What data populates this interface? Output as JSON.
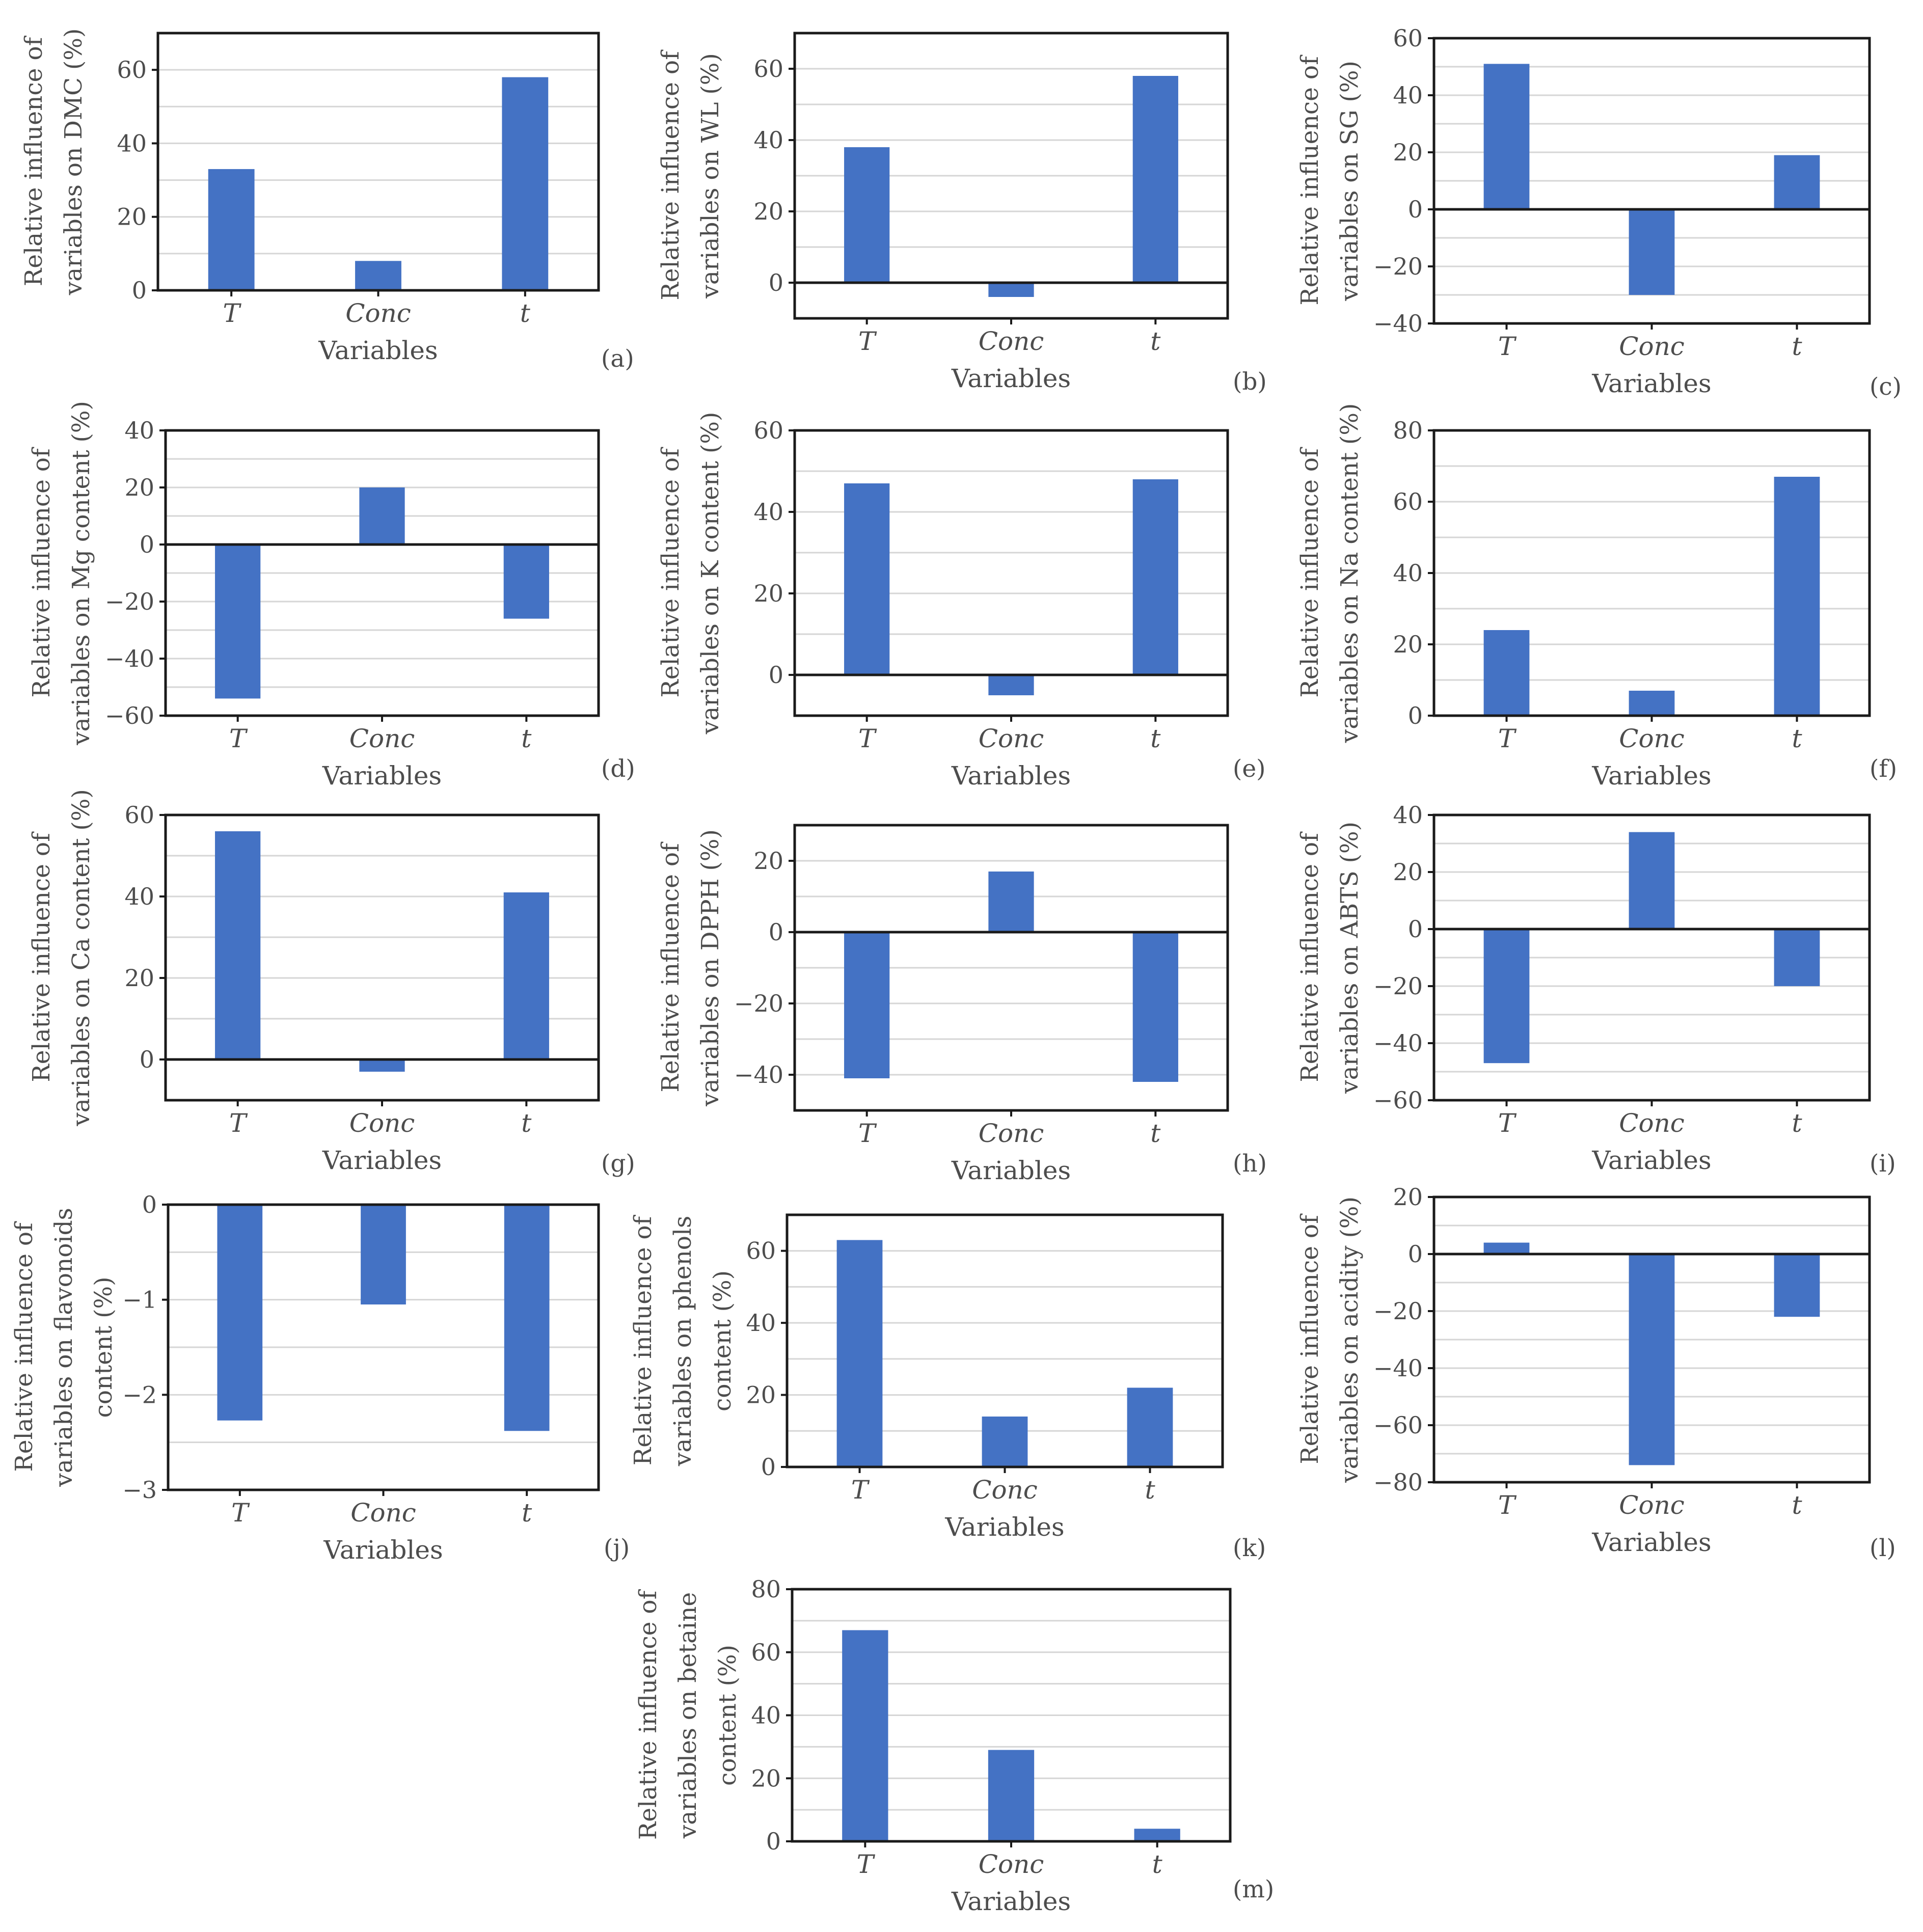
{
  "chart_data": [
    {
      "type": "bar",
      "panel": "(a)",
      "categories": [
        "T",
        "Conc",
        "t"
      ],
      "values": [
        33,
        8,
        58
      ],
      "ylabel": [
        "Relative influence of",
        "variables on DMC (%)"
      ],
      "xlabel": "Variables",
      "ylim": [
        0,
        70
      ],
      "yticks": [
        0,
        20,
        40,
        60
      ],
      "grid_step": 10,
      "bar_color": "#4472c4"
    },
    {
      "type": "bar",
      "panel": "(b)",
      "categories": [
        "T",
        "Conc",
        "t"
      ],
      "values": [
        38,
        -4,
        58
      ],
      "ylabel": [
        "Relative influence of",
        "variables on WL (%)"
      ],
      "xlabel": "Variables",
      "ylim": [
        -10,
        70
      ],
      "yticks": [
        0,
        20,
        40,
        60
      ],
      "grid_step": 10,
      "bar_color": "#4472c4"
    },
    {
      "type": "bar",
      "panel": "(c)",
      "categories": [
        "T",
        "Conc",
        "t"
      ],
      "values": [
        51,
        -30,
        19
      ],
      "ylabel": [
        "Relative influence of",
        "variables on SG (%)"
      ],
      "xlabel": "Variables",
      "ylim": [
        -40,
        60
      ],
      "yticks": [
        -40,
        -20,
        0,
        20,
        40,
        60
      ],
      "grid_step": 10,
      "bar_color": "#4472c4"
    },
    {
      "type": "bar",
      "panel": "(d)",
      "categories": [
        "T",
        "Conc",
        "t"
      ],
      "values": [
        -54,
        20,
        -26
      ],
      "ylabel": [
        "Relative influence of",
        "variables on Mg content (%)"
      ],
      "xlabel": "Variables",
      "ylim": [
        -60,
        40
      ],
      "yticks": [
        -60,
        -40,
        -20,
        0,
        20,
        40
      ],
      "grid_step": 10,
      "bar_color": "#4472c4"
    },
    {
      "type": "bar",
      "panel": "(e)",
      "categories": [
        "T",
        "Conc",
        "t"
      ],
      "values": [
        47,
        -5,
        48
      ],
      "ylabel": [
        "Relative influence of",
        "variables on K content (%)"
      ],
      "xlabel": "Variables",
      "ylim": [
        -10,
        60
      ],
      "yticks": [
        0,
        20,
        40,
        60
      ],
      "grid_step": 10,
      "bar_color": "#4472c4"
    },
    {
      "type": "bar",
      "panel": "(f)",
      "categories": [
        "T",
        "Conc",
        "t"
      ],
      "values": [
        24,
        7,
        67
      ],
      "ylabel": [
        "Relative influence of",
        "variables on Na content (%)"
      ],
      "xlabel": "Variables",
      "ylim": [
        0,
        80
      ],
      "yticks": [
        0,
        20,
        40,
        60,
        80
      ],
      "grid_step": 10,
      "bar_color": "#4472c4"
    },
    {
      "type": "bar",
      "panel": "(g)",
      "categories": [
        "T",
        "Conc",
        "t"
      ],
      "values": [
        56,
        -3,
        41
      ],
      "ylabel": [
        "Relative influence of",
        "variables on Ca content (%)"
      ],
      "xlabel": "Variables",
      "ylim": [
        -10,
        60
      ],
      "yticks": [
        0,
        20,
        40,
        60
      ],
      "grid_step": 10,
      "bar_color": "#4472c4"
    },
    {
      "type": "bar",
      "panel": "(h)",
      "categories": [
        "T",
        "Conc",
        "t"
      ],
      "values": [
        -41,
        17,
        -42
      ],
      "ylabel": [
        "Relative influence of",
        "variables on DPPH (%)"
      ],
      "xlabel": "Variables",
      "ylim": [
        -50,
        30
      ],
      "yticks": [
        -40,
        -20,
        0,
        20
      ],
      "grid_step": 10,
      "bar_color": "#4472c4"
    },
    {
      "type": "bar",
      "panel": "(i)",
      "categories": [
        "T",
        "Conc",
        "t"
      ],
      "values": [
        -47,
        34,
        -20
      ],
      "ylabel": [
        "Relative influence of",
        "variables on ABTS (%)"
      ],
      "xlabel": "Variables",
      "ylim": [
        -60,
        40
      ],
      "yticks": [
        -60,
        -40,
        -20,
        0,
        20,
        40
      ],
      "grid_step": 10,
      "bar_color": "#4472c4"
    },
    {
      "type": "bar",
      "panel": "(j)",
      "categories": [
        "T",
        "Conc",
        "t"
      ],
      "values": [
        -2.27,
        -1.05,
        -2.38
      ],
      "ylabel": [
        "Relative influence of",
        "variables on flavonoids",
        "content (%)"
      ],
      "xlabel": "Variables",
      "ylim": [
        -3,
        0
      ],
      "yticks": [
        -3,
        -2,
        -1,
        0
      ],
      "grid_step": 0.5,
      "bar_color": "#4472c4"
    },
    {
      "type": "bar",
      "panel": "(k)",
      "categories": [
        "T",
        "Conc",
        "t"
      ],
      "values": [
        63,
        14,
        22
      ],
      "ylabel": [
        "Relative influence of",
        "variables on phenols",
        "content (%)"
      ],
      "xlabel": "Variables",
      "ylim": [
        0,
        70
      ],
      "yticks": [
        0,
        20,
        40,
        60
      ],
      "grid_step": 10,
      "bar_color": "#4472c4"
    },
    {
      "type": "bar",
      "panel": "(l)",
      "categories": [
        "T",
        "Conc",
        "t"
      ],
      "values": [
        4,
        -74,
        -22
      ],
      "ylabel": [
        "Relative influence of",
        "variables on acidity (%)"
      ],
      "xlabel": "Variables",
      "ylim": [
        -80,
        20
      ],
      "yticks": [
        -80,
        -60,
        -40,
        -20,
        0,
        20
      ],
      "grid_step": 10,
      "bar_color": "#4472c4"
    },
    {
      "type": "bar",
      "panel": "(m)",
      "categories": [
        "T",
        "Conc",
        "t"
      ],
      "values": [
        67,
        29,
        4
      ],
      "ylabel": [
        "Relative influence of",
        "variables on betaine",
        "content (%)"
      ],
      "xlabel": "Variables",
      "ylim": [
        0,
        80
      ],
      "yticks": [
        0,
        20,
        40,
        60,
        80
      ],
      "grid_step": 10,
      "bar_color": "#4472c4"
    }
  ]
}
